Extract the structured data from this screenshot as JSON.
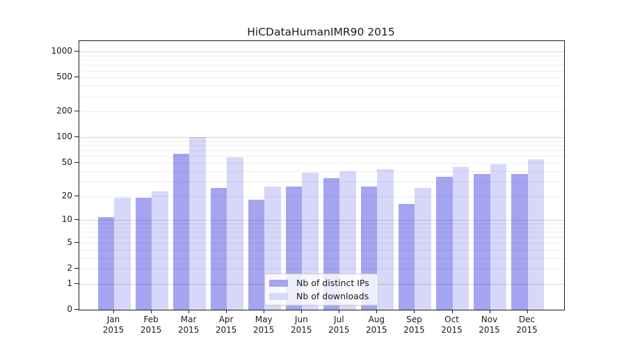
{
  "title": "HiCDataHumanIMR90 2015",
  "chart_data": {
    "type": "bar",
    "title": "HiCDataHumanIMR90 2015",
    "scale": "log10(value+1)",
    "grid": true,
    "legend_position": "lower center",
    "categories": [
      "Jan",
      "Feb",
      "Mar",
      "Apr",
      "May",
      "Jun",
      "Jul",
      "Aug",
      "Sep",
      "Oct",
      "Nov",
      "Dec"
    ],
    "year": "2015",
    "series": [
      {
        "name": "Nb of distinct IPs",
        "color": "#a4a4f1",
        "values": [
          11,
          19,
          64,
          25,
          18,
          26,
          33,
          26,
          16,
          34,
          37,
          37
        ]
      },
      {
        "name": "Nb of downloads",
        "color": "#d7d7f9",
        "values": [
          19,
          23,
          100,
          58,
          26,
          38,
          40,
          42,
          25,
          45,
          48,
          55
        ]
      }
    ],
    "yticks": [
      0,
      1,
      2,
      5,
      10,
      20,
      50,
      100,
      200,
      500,
      1000
    ],
    "major_gridlines": [
      1,
      10,
      100,
      1000
    ],
    "ylim": [
      0,
      1330
    ],
    "xlabel": "",
    "ylabel": ""
  },
  "colors": {
    "bar_distinct_ips": "#a4a4f1",
    "bar_downloads": "#d7d7f9",
    "axis": "#1a1a1a",
    "grid_major": "#d6d6d6",
    "grid_minor": "#ececec",
    "legend_border": "#cccccc",
    "background": "#ffffff"
  }
}
